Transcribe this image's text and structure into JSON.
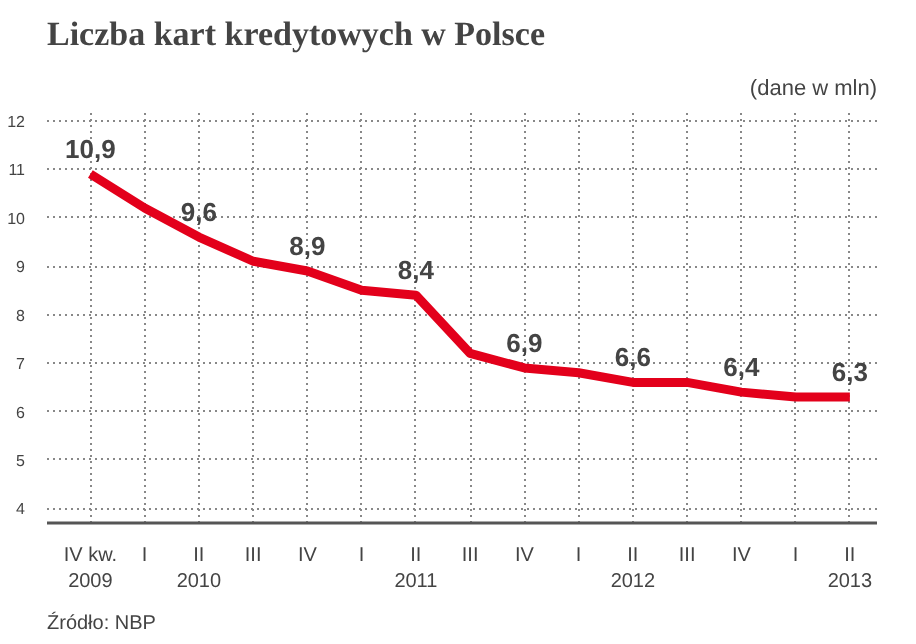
{
  "chart_data": {
    "type": "line",
    "title": "Liczba kart kredytowych w Polsce",
    "categories": [
      "IV kw.\n2009",
      "I",
      "II\n2010",
      "III",
      "IV",
      "I",
      "II\n2011",
      "III",
      "IV",
      "I",
      "II\n2012",
      "III",
      "IV",
      "I",
      "II\n2013"
    ],
    "series": [
      {
        "color": "#e3001b",
        "values": [
          10.9,
          10.2,
          9.6,
          9.1,
          8.9,
          8.5,
          8.4,
          7.2,
          6.9,
          6.8,
          6.6,
          6.6,
          6.4,
          6.3,
          6.3
        ],
        "value_labels": [
          "10,9",
          null,
          "9,6",
          null,
          "8,9",
          null,
          "8,4",
          null,
          "6,9",
          null,
          "6,6",
          null,
          "6,4",
          null,
          "6,3"
        ]
      }
    ],
    "ylim": [
      3.7,
      12.2
    ],
    "yticks": [
      4,
      5,
      6,
      7,
      8,
      9,
      10,
      11,
      12
    ],
    "grid": true,
    "line_style": "solid",
    "marker": "none",
    "annotations": [
      "(dane w mln)",
      "Źródło: NBP"
    ]
  }
}
